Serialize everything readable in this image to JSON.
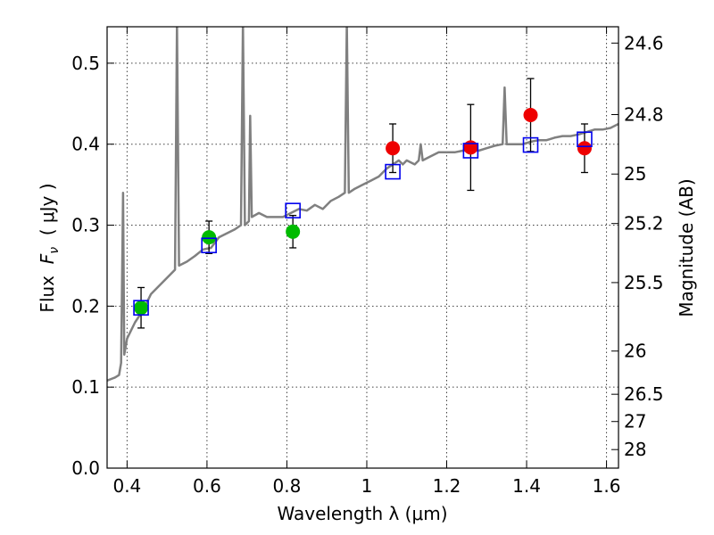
{
  "chart_data": {
    "type": "scatter",
    "xlabel": "Wavelength  λ (μm)",
    "ylabel": "Flux  F_ν  ( μJy )",
    "ylabel_parts": {
      "pre": "Flux  ",
      "var": "F",
      "sub": "ν",
      "post": "  ( μJy )"
    },
    "ylabel_right": "Magnitude (AB)",
    "xlim": [
      0.35,
      1.63
    ],
    "ylim": [
      0.0,
      0.545
    ],
    "grid": true,
    "x_ticks": [
      0.4,
      0.6,
      0.8,
      1.0,
      1.2,
      1.4,
      1.6
    ],
    "x_tick_labels": [
      "0.4",
      "0.6",
      "0.8",
      "1",
      "1.2",
      "1.4",
      "1.6"
    ],
    "y_ticks": [
      0.0,
      0.1,
      0.2,
      0.3,
      0.4,
      0.5
    ],
    "y_tick_labels": [
      "0.0",
      "0.1",
      "0.2",
      "0.3",
      "0.4",
      "0.5"
    ],
    "right_ticks": [
      {
        "label": "24.6",
        "value": 24.6
      },
      {
        "label": "24.8",
        "value": 24.8
      },
      {
        "label": "25",
        "value": 25.0
      },
      {
        "label": "25.2",
        "value": 25.2
      },
      {
        "label": "25.5",
        "value": 25.5
      },
      {
        "label": "26",
        "value": 26.0
      },
      {
        "label": "26.5",
        "value": 26.5
      },
      {
        "label": "27",
        "value": 27.0
      },
      {
        "label": "28",
        "value": 28.0
      }
    ],
    "model_spectrum": {
      "color": "#808080",
      "points": [
        [
          0.35,
          0.108
        ],
        [
          0.37,
          0.112
        ],
        [
          0.38,
          0.115
        ],
        [
          0.385,
          0.13
        ],
        [
          0.39,
          0.34
        ],
        [
          0.393,
          0.14
        ],
        [
          0.4,
          0.16
        ],
        [
          0.42,
          0.18
        ],
        [
          0.44,
          0.195
        ],
        [
          0.46,
          0.215
        ],
        [
          0.48,
          0.225
        ],
        [
          0.5,
          0.235
        ],
        [
          0.52,
          0.245
        ],
        [
          0.525,
          0.55
        ],
        [
          0.53,
          0.25
        ],
        [
          0.55,
          0.255
        ],
        [
          0.57,
          0.262
        ],
        [
          0.59,
          0.27
        ],
        [
          0.61,
          0.272
        ],
        [
          0.63,
          0.285
        ],
        [
          0.65,
          0.29
        ],
        [
          0.67,
          0.295
        ],
        [
          0.685,
          0.3
        ],
        [
          0.69,
          0.55
        ],
        [
          0.695,
          0.3
        ],
        [
          0.705,
          0.305
        ],
        [
          0.708,
          0.435
        ],
        [
          0.712,
          0.31
        ],
        [
          0.73,
          0.315
        ],
        [
          0.75,
          0.31
        ],
        [
          0.77,
          0.31
        ],
        [
          0.79,
          0.31
        ],
        [
          0.81,
          0.315
        ],
        [
          0.83,
          0.32
        ],
        [
          0.85,
          0.318
        ],
        [
          0.87,
          0.325
        ],
        [
          0.89,
          0.32
        ],
        [
          0.91,
          0.33
        ],
        [
          0.93,
          0.335
        ],
        [
          0.945,
          0.34
        ],
        [
          0.95,
          0.55
        ],
        [
          0.955,
          0.34
        ],
        [
          0.97,
          0.345
        ],
        [
          0.99,
          0.35
        ],
        [
          1.01,
          0.355
        ],
        [
          1.03,
          0.36
        ],
        [
          1.05,
          0.37
        ],
        [
          1.065,
          0.375
        ],
        [
          1.08,
          0.38
        ],
        [
          1.09,
          0.375
        ],
        [
          1.1,
          0.38
        ],
        [
          1.12,
          0.375
        ],
        [
          1.13,
          0.38
        ],
        [
          1.135,
          0.4
        ],
        [
          1.14,
          0.38
        ],
        [
          1.16,
          0.385
        ],
        [
          1.18,
          0.39
        ],
        [
          1.2,
          0.39
        ],
        [
          1.22,
          0.39
        ],
        [
          1.24,
          0.392
        ],
        [
          1.26,
          0.393
        ],
        [
          1.28,
          0.392
        ],
        [
          1.3,
          0.395
        ],
        [
          1.32,
          0.398
        ],
        [
          1.34,
          0.4
        ],
        [
          1.345,
          0.47
        ],
        [
          1.35,
          0.4
        ],
        [
          1.37,
          0.4
        ],
        [
          1.39,
          0.4
        ],
        [
          1.41,
          0.403
        ],
        [
          1.43,
          0.405
        ],
        [
          1.45,
          0.405
        ],
        [
          1.47,
          0.408
        ],
        [
          1.49,
          0.41
        ],
        [
          1.51,
          0.41
        ],
        [
          1.53,
          0.412
        ],
        [
          1.55,
          0.415
        ],
        [
          1.57,
          0.418
        ],
        [
          1.59,
          0.418
        ],
        [
          1.61,
          0.42
        ],
        [
          1.63,
          0.425
        ]
      ]
    },
    "series": [
      {
        "marker": "circle",
        "color": "#00bb00",
        "points": [
          {
            "x": 0.435,
            "y": 0.198,
            "err": 0.025
          },
          {
            "x": 0.605,
            "y": 0.285,
            "err": 0.02
          },
          {
            "x": 0.815,
            "y": 0.292,
            "err": 0.02
          }
        ]
      },
      {
        "marker": "circle",
        "color": "#ee0000",
        "points": [
          {
            "x": 1.065,
            "y": 0.395,
            "err": 0.03
          },
          {
            "x": 1.26,
            "y": 0.396,
            "err": 0.053
          },
          {
            "x": 1.41,
            "y": 0.436,
            "err": 0.045
          },
          {
            "x": 1.545,
            "y": 0.395,
            "err": 0.03
          }
        ]
      },
      {
        "marker": "open-square",
        "color": "#0000ee",
        "points": [
          {
            "x": 0.435,
            "y": 0.198
          },
          {
            "x": 0.605,
            "y": 0.275
          },
          {
            "x": 0.815,
            "y": 0.318
          },
          {
            "x": 1.065,
            "y": 0.366
          },
          {
            "x": 1.26,
            "y": 0.392
          },
          {
            "x": 1.41,
            "y": 0.399
          },
          {
            "x": 1.545,
            "y": 0.406
          }
        ]
      }
    ]
  }
}
